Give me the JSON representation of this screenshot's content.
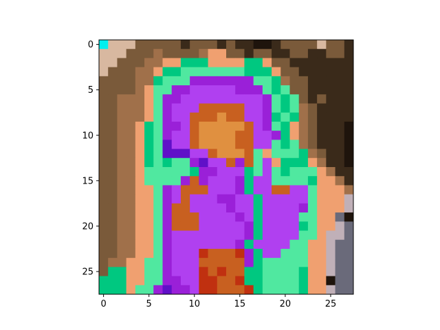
{
  "chart_data": {
    "type": "heatmap",
    "title": "",
    "xlabel": "",
    "ylabel": "",
    "grid": false,
    "rows": 28,
    "cols": 28,
    "xlim": [
      -0.5,
      27.5
    ],
    "ylim": [
      27.5,
      -0.5
    ],
    "x_ticks": [
      0,
      5,
      10,
      15,
      20,
      25
    ],
    "y_ticks": [
      0,
      5,
      10,
      15,
      20,
      25
    ],
    "x_tick_labels": [
      "0",
      "5",
      "10",
      "15",
      "20",
      "25"
    ],
    "y_tick_labels": [
      "0",
      "5",
      "10",
      "15",
      "20",
      "25"
    ],
    "palette": {
      "a": "#00f0f0",
      "s": "#d8b8a0",
      "b": "#7a5a3a",
      "B": "#a0704a",
      "d": "#3a2a1a",
      "D": "#1e140c",
      "o": "#f0a070",
      "O": "#c86020",
      "t": "#e09040",
      "g": "#00c880",
      "G": "#50e8a0",
      "p": "#9a20d8",
      "P": "#b040f0",
      "v": "#6010c8",
      "r": "#c03010",
      "x": "#6a6a7a",
      "w": "#c0b0b8"
    },
    "pixels": [
      "asssbbbbbdbbbdbddDDdbbbbsbbd",
      "sssbbbBbbbbBoobbdbbddbbddbbd",
      "ssbbbBBoogggooooggobbddddddd",
      "sbbbBBoggGGGGGGGgggobbdddddd",
      "bbbbBBgGGGpppppppGGgBbbddddd",
      "bbbbBoGGppPPPPPpppGgGbbddddd",
      "bbBBBoGppPPPPPPPPPpGgGbdbddd",
      "bbBBBoGpPPPOOOOOPPpGgGBbdddd",
      "bbBBBoGpPPOOOtOOPPpgGgBbdddd",
      "bbBBogGppPOtttttOPpGgoBbdddD",
      "bbBBogGpPPOttttOOPPpgoBbdddD",
      "bbBBogGvPPOttttOOPPGgGBbdddD",
      "bbBBogGvvvPPOtttOGoGGGgBbddD",
      "bbBBogGgGGpvPPOpOGPogggoBddD",
      "bbBBoGGGGGgppPPPgGPGgGGGoBdd",
      "bbBBoGGGGpOpPPPpgPPGGGGgooBd",
      "bbBBooGpPOOOPPPpgPPOOPPGoooB",
      "bbBBooGpPOPPPppPPgPPPPPGooow",
      "bbBBooGpOOPPPPpPPgPPPPpGooow",
      "bbBBooGpOOOPPPPpPgPPPPGGooxD",
      "bbBBooGpOOOPPPPPpgPPPPgGoowx",
      "bbBBooGpPPPPPPPPpgPPPPGGowwx",
      "bbBBooGpPPPPPPPpgPPPPGGoowxx",
      "bbBBooGpPPPrOOOrpgPPGGGoowxx",
      "bBBooGGpPPPOOOOOpgGGGGGoowxx",
      "bggooGGpPPPrOrOOggGGGGgoowxx",
      "gggooGGppPPrrOOrggGGGGgooDxx",
      "gggoGGpvppPrrOOOrgGGGGgoowxx"
    ]
  }
}
